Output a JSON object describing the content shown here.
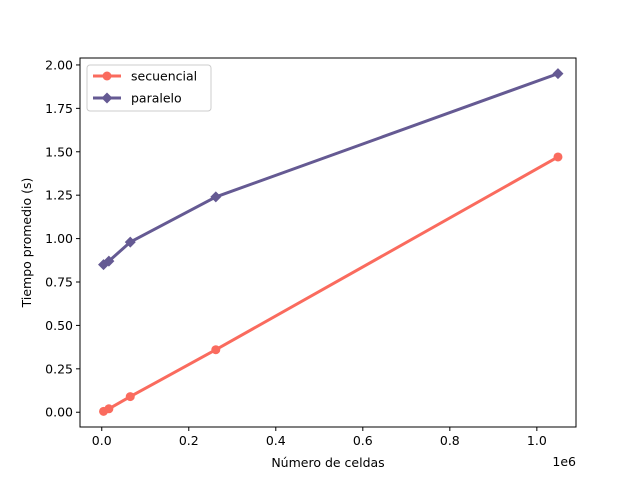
{
  "chart_data": {
    "type": "line",
    "title": "",
    "xlabel": "Número de celdas",
    "ylabel": "Tiempo promedio (s)",
    "x_offset_label": "1e6",
    "xlim": [
      -0.05,
      1.09
    ],
    "ylim": [
      -0.085,
      2.04
    ],
    "x_ticks": [
      0.0,
      0.2,
      0.4,
      0.6,
      0.8,
      1.0
    ],
    "x_tick_labels": [
      "0.0",
      "0.2",
      "0.4",
      "0.6",
      "0.8",
      "1.0"
    ],
    "y_ticks": [
      0.0,
      0.25,
      0.5,
      0.75,
      1.0,
      1.25,
      1.5,
      1.75,
      2.0
    ],
    "y_tick_labels": [
      "0.00",
      "0.25",
      "0.50",
      "0.75",
      "1.00",
      "1.25",
      "1.50",
      "1.75",
      "2.00"
    ],
    "grid": false,
    "legend_position": "upper-left",
    "x": [
      0.004096,
      0.016384,
      0.065536,
      0.262144,
      1.048576
    ],
    "series": [
      {
        "name": "secuencial",
        "color": "#fa6b5e",
        "marker": "circle",
        "values": [
          0.005,
          0.02,
          0.09,
          0.36,
          1.47
        ]
      },
      {
        "name": "paralelo",
        "color": "#655a93",
        "marker": "diamond",
        "values": [
          0.85,
          0.87,
          0.98,
          1.24,
          1.95
        ]
      }
    ]
  }
}
